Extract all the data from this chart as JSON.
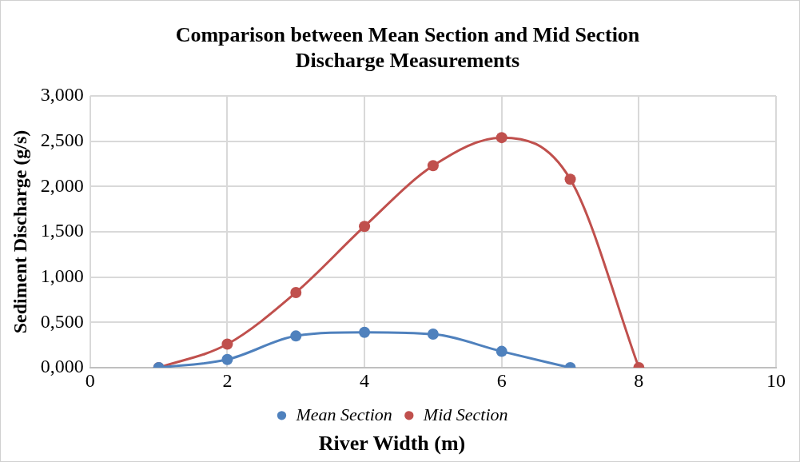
{
  "chart_data": {
    "type": "line",
    "title": "Comparison between Mean Section and Mid Section Discharge Measurements",
    "xlabel": "River Width (m)",
    "ylabel": "Sediment Discharge (g/s)",
    "xlim": [
      0,
      10
    ],
    "xticks": [
      0,
      2,
      4,
      6,
      8,
      10
    ],
    "ylim": [
      0,
      3
    ],
    "yticks": [
      {
        "value": 0,
        "label": "0,000"
      },
      {
        "value": 0.5,
        "label": "0,500"
      },
      {
        "value": 1,
        "label": "1,000"
      },
      {
        "value": 1.5,
        "label": "1,500"
      },
      {
        "value": 2,
        "label": "2,000"
      },
      {
        "value": 2.5,
        "label": "2,500"
      },
      {
        "value": 3,
        "label": "3,000"
      }
    ],
    "grid": true,
    "legend": "bottom",
    "marker": "circle",
    "line_style": "solid",
    "series": [
      {
        "name": "Mean Section",
        "color": "#4f81bd",
        "x": [
          1,
          2,
          3,
          4,
          5,
          6,
          7
        ],
        "values": [
          0,
          0.09,
          0.35,
          0.39,
          0.37,
          0.18,
          0
        ]
      },
      {
        "name": "Mid Section",
        "color": "#c0504d",
        "x": [
          1,
          2,
          3,
          4,
          5,
          6,
          7,
          8
        ],
        "values": [
          0,
          0.26,
          0.83,
          1.56,
          2.23,
          2.54,
          2.08,
          0
        ]
      }
    ]
  }
}
